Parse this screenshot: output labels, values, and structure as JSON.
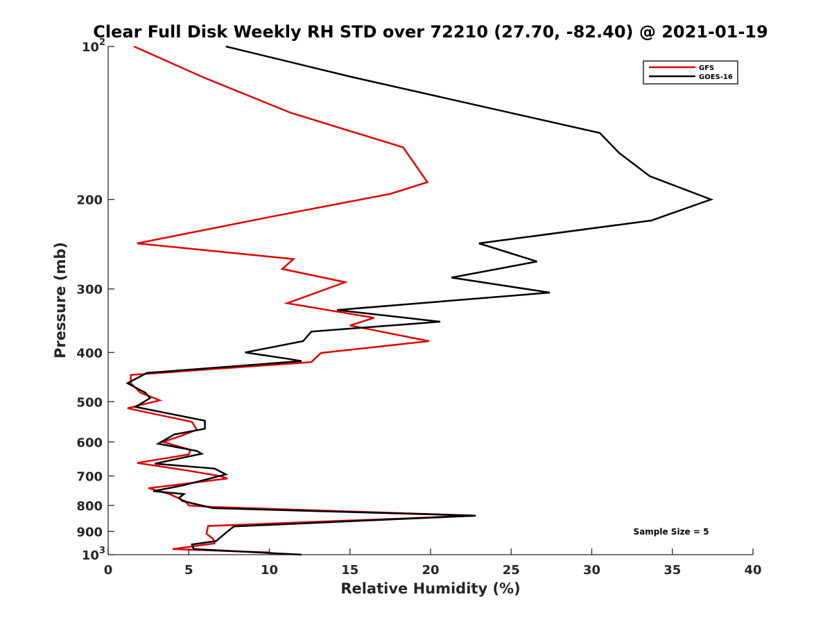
{
  "chart_data": {
    "type": "line",
    "orientation": "profile",
    "title": "Clear Full Disk Weekly RH STD over 72210 (27.70, -82.40) @ 2021-01-19",
    "xlabel": "Relative Humidity (%)",
    "ylabel": "Pressure (mb)",
    "xlim": [
      0,
      40
    ],
    "ylim": [
      100,
      1000
    ],
    "y_scale": "log",
    "y_reversed": true,
    "x_ticks": [
      "0",
      "5",
      "10",
      "15",
      "20",
      "25",
      "30",
      "35",
      "40"
    ],
    "y_ticks": [
      {
        "value": 100,
        "base": "10",
        "exp": "2"
      },
      {
        "value": 200,
        "base": "200",
        "exp": ""
      },
      {
        "value": 300,
        "base": "300",
        "exp": ""
      },
      {
        "value": 400,
        "base": "400",
        "exp": ""
      },
      {
        "value": 500,
        "base": "500",
        "exp": ""
      },
      {
        "value": 600,
        "base": "600",
        "exp": ""
      },
      {
        "value": 700,
        "base": "700",
        "exp": ""
      },
      {
        "value": 800,
        "base": "800",
        "exp": ""
      },
      {
        "value": 900,
        "base": "900",
        "exp": ""
      },
      {
        "value": 1000,
        "base": "10",
        "exp": "3"
      }
    ],
    "grid": false,
    "legend_position": "top-right",
    "annotation": "Sample Size = 5",
    "series": [
      {
        "name": "GFS",
        "color": "#e00000",
        "x": [
          1.6,
          5.9,
          11.3,
          18.3,
          19.8,
          17.5,
          10.2,
          1.8,
          11.5,
          10.8,
          14.7,
          11.1,
          16.5,
          15.0,
          19.9,
          13.2,
          12.6,
          1.4,
          1.4,
          2.0,
          3.2,
          1.2,
          5.2,
          5.5,
          4.5,
          3.4,
          5.1,
          5.0,
          1.8,
          4.8,
          6.9,
          7.4,
          2.5,
          3.8,
          4.2,
          4.8,
          5.0,
          6.2,
          22.8,
          6.2,
          6.1,
          6.5,
          6.6,
          4.0,
          10.0,
          10.3
        ],
        "y": [
          100,
          115,
          135,
          158,
          185,
          195,
          216,
          244,
          262,
          274,
          291,
          320,
          342,
          354,
          380,
          401,
          418,
          443,
          460,
          480,
          497,
          515,
          548,
          568,
          584,
          600,
          622,
          635,
          660,
          682,
          700,
          708,
          740,
          760,
          770,
          786,
          800,
          805,
          838,
          878,
          910,
          930,
          950,
          975,
          990,
          1000
        ]
      },
      {
        "name": "GOES-16",
        "color": "#000000",
        "x": [
          7.3,
          15.2,
          30.5,
          31.7,
          33.6,
          37.4,
          33.7,
          23.0,
          26.6,
          21.3,
          27.4,
          14.2,
          20.6,
          12.6,
          12.1,
          8.5,
          11.2,
          12.0,
          2.4,
          1.2,
          2.3,
          2.6,
          1.7,
          6.0,
          6.0,
          4.1,
          3.1,
          5.5,
          5.8,
          2.9,
          6.6,
          7.3,
          4.7,
          2.8,
          4.7,
          4.4,
          4.6,
          6.5,
          22.8,
          7.8,
          7.5,
          6.7,
          5.2,
          5.3,
          12.0
        ],
        "y": [
          100,
          115,
          148,
          162,
          180,
          200,
          220,
          244,
          265,
          285,
          305,
          330,
          348,
          364,
          380,
          400,
          412,
          416,
          439,
          460,
          480,
          492,
          512,
          545,
          565,
          580,
          605,
          625,
          633,
          662,
          677,
          695,
          730,
          750,
          760,
          773,
          784,
          810,
          838,
          880,
          895,
          940,
          955,
          975,
          1000
        ]
      }
    ]
  }
}
